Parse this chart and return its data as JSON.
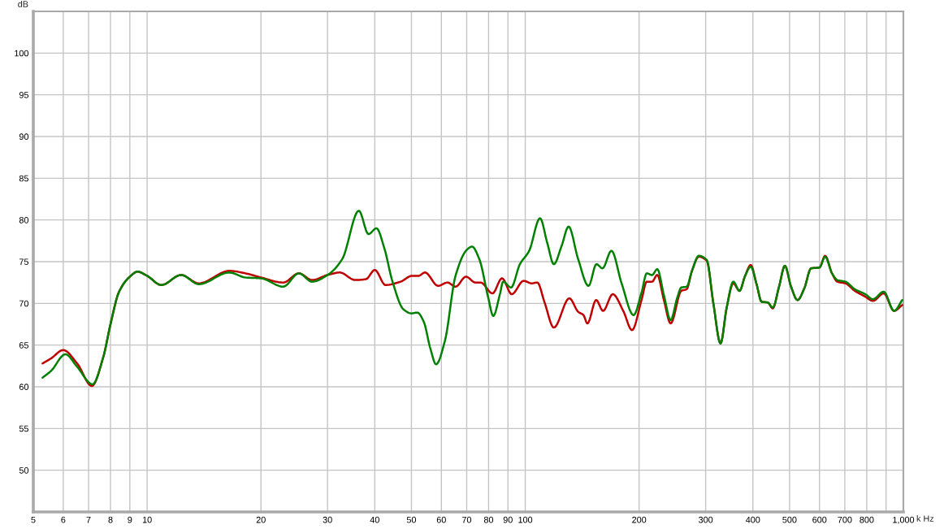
{
  "chart_data": {
    "type": "line",
    "ylabel": "dB",
    "xlabel": "k Hz",
    "log": "x",
    "xlim": [
      5,
      1000
    ],
    "ylim": [
      45,
      105
    ],
    "xticks": [
      5,
      6,
      7,
      8,
      9,
      10,
      20,
      30,
      40,
      50,
      60,
      70,
      80,
      90,
      100,
      200,
      300,
      400,
      500,
      600,
      700,
      800,
      {
        "value": 900,
        "label": null
      },
      {
        "value": 1000,
        "label": "1,000"
      }
    ],
    "yticks": [
      50,
      55,
      60,
      65,
      70,
      75,
      80,
      85,
      90,
      95,
      100
    ],
    "grid": true,
    "line_style": "solid",
    "series": [
      {
        "color": "#c00000",
        "x": [
          5.29,
          5.57,
          6.0,
          6.53,
          7.14,
          7.66,
          8.0,
          8.43,
          9.0,
          9.43,
          10.0,
          10.9,
          12.3,
          13.7,
          16.5,
          18.2,
          20,
          22.9,
          25.2,
          27.3,
          30,
          32.3,
          35.5,
          37.9,
          40,
          42.7,
          46.8,
          50.2,
          52.2,
          54.3,
          58.8,
          62.3,
          65.4,
          69.7,
          73.8,
          76.2,
          81.9,
          86.8,
          92.1,
          99,
          104,
          107.6,
          112.5,
          119,
          130.8,
          138,
          142.5,
          146,
          154,
          160.6,
          170.4,
          181.6,
          191.6,
          203,
          209.6,
          216.4,
          223.4,
          232.6,
          242.4,
          258.6,
          267.2,
          276,
          287.7,
          302,
          314.4,
          328.4,
          341,
          355,
          368.6,
          381.5,
          394.7,
          409,
          421.7,
          438,
          451.3,
          469,
          486,
          504.6,
          525,
          547,
          570,
          600,
          621,
          647.5,
          669,
          702.6,
          744,
          793,
          831,
          887,
          945,
          993
        ],
        "values": [
          62.8,
          63.4,
          64.4,
          62.8,
          60.1,
          63.6,
          67.5,
          71.4,
          73.2,
          73.8,
          73.3,
          72.2,
          73.4,
          72.4,
          73.9,
          73.6,
          73.1,
          72.5,
          73.6,
          72.8,
          73.4,
          73.7,
          72.8,
          72.9,
          74.0,
          72.2,
          72.6,
          73.3,
          73.3,
          73.7,
          72.1,
          72.5,
          72.0,
          73.2,
          72.5,
          72.5,
          71.2,
          73.0,
          71.1,
          72.7,
          72.4,
          72.5,
          70.1,
          67.1,
          70.6,
          69.0,
          68.6,
          67.6,
          70.4,
          69.1,
          71.1,
          69.1,
          66.8,
          70.4,
          72.6,
          72.6,
          73.4,
          70.4,
          67.6,
          71.5,
          71.7,
          73.9,
          75.6,
          75.1,
          70.0,
          65.2,
          69.5,
          72.4,
          71.5,
          73.3,
          74.6,
          72.3,
          70.2,
          70.1,
          69.4,
          72.0,
          74.5,
          72.0,
          70.4,
          71.8,
          74.2,
          74.3,
          75.7,
          73.6,
          72.6,
          72.4,
          71.5,
          70.8,
          70.3,
          71.2,
          69.1,
          69.8
        ]
      },
      {
        "color": "#008000",
        "x": [
          5.29,
          5.57,
          6.08,
          6.53,
          7.17,
          7.66,
          8.0,
          8.43,
          9.0,
          9.43,
          10.0,
          10.9,
          12.3,
          13.7,
          16.5,
          18.2,
          20,
          22.9,
          25.2,
          27.3,
          30,
          32.8,
          36.3,
          38.5,
          40.4,
          42.4,
          44.5,
          47.6,
          50,
          51.8,
          53.9,
          56.1,
          58.1,
          61.3,
          65.4,
          70,
          72.3,
          75.6,
          79.8,
          82.3,
          85.7,
          87.4,
          91.7,
          96.8,
          102.4,
          109.4,
          114.4,
          119,
          124.8,
          130.2,
          138,
          147,
          154.3,
          160,
          169,
          179.8,
          193.4,
          203,
          209.6,
          216.4,
          223.4,
          232.6,
          242.4,
          252.4,
          258.6,
          267.2,
          276,
          287.7,
          302,
          314.4,
          328.4,
          341,
          355,
          368.6,
          381.5,
          394.7,
          409,
          421.7,
          438,
          451.3,
          469,
          486,
          504.6,
          525,
          547,
          570,
          600,
          621,
          647.5,
          669,
          702.6,
          744,
          793,
          831,
          887,
          945,
          993
        ],
        "values": [
          61.1,
          61.9,
          63.9,
          62.4,
          60.3,
          63.6,
          67.5,
          71.4,
          73.2,
          73.8,
          73.3,
          72.2,
          73.4,
          72.3,
          73.7,
          73.1,
          73.0,
          72.0,
          73.6,
          72.6,
          73.4,
          75.3,
          81.1,
          78.3,
          79.0,
          76.6,
          72.7,
          69.3,
          68.8,
          68.9,
          67.8,
          64.6,
          62.7,
          65.5,
          73.3,
          76.4,
          76.8,
          75.3,
          70.7,
          68.5,
          71.1,
          72.6,
          71.9,
          74.7,
          76.3,
          80.2,
          77.2,
          74.7,
          76.9,
          79.2,
          75.3,
          72.1,
          74.7,
          74.2,
          76.3,
          72.4,
          68.6,
          71.3,
          73.6,
          73.4,
          74.1,
          71.0,
          68.0,
          70.7,
          71.9,
          72.0,
          73.9,
          75.7,
          75.2,
          70.0,
          65.2,
          69.5,
          72.6,
          71.5,
          73.3,
          74.4,
          72.3,
          70.2,
          70.1,
          69.5,
          72.0,
          74.5,
          72.0,
          70.4,
          71.8,
          74.2,
          74.3,
          75.6,
          73.6,
          72.8,
          72.6,
          71.7,
          71.1,
          70.5,
          71.4,
          69.1,
          70.4
        ]
      }
    ]
  }
}
